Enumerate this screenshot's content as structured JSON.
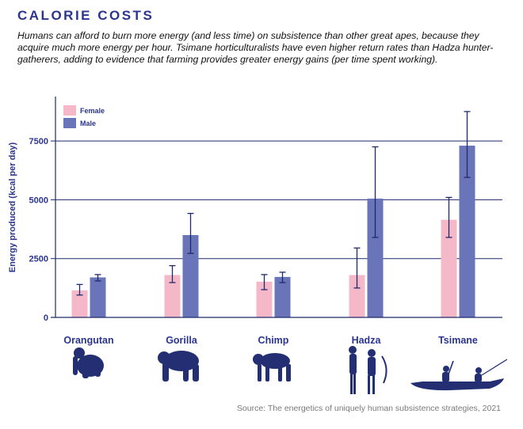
{
  "header": {
    "title": "CALORIE COSTS",
    "subtitle": "Humans can afford to burn more energy (and less time) on subsistence than other great apes, because they acquire much more energy per hour. Tsimane horticulturalists have even higher return rates than Hadza hunter-gatherers, adding to evidence that farming provides greater energy gains (per time spent working)."
  },
  "source": "Source: The energetics of uniquely human subsistence strategies, 2021",
  "colors": {
    "female": "#f4b8c9",
    "male": "#6a74b8",
    "axis": "#1f2a6b",
    "text": "#2b3590"
  },
  "icons": [
    "orangutan-icon",
    "gorilla-icon",
    "chimp-icon",
    "hadza-hunters-icon",
    "tsimane-canoe-icon"
  ],
  "chart_data": {
    "type": "bar",
    "title": "",
    "xlabel": "",
    "ylabel": "Energy produced (kcal per day)",
    "ylim": [
      0,
      9000
    ],
    "yticks": [
      0,
      2500,
      5000,
      7500
    ],
    "ytick_labels": [
      "0",
      "2500",
      "5000",
      "7500"
    ],
    "grid": true,
    "legend": "top-left",
    "categories": [
      "Orangutan",
      "Gorilla",
      "Chimp",
      "Hadza",
      "Tsimane"
    ],
    "series": [
      {
        "name": "Female",
        "values": [
          1150,
          1800,
          1520,
          1800,
          4150
        ],
        "error_low": [
          950,
          1480,
          1180,
          1250,
          3400
        ],
        "error_high": [
          1400,
          2200,
          1820,
          2950,
          5100
        ]
      },
      {
        "name": "Male",
        "values": [
          1700,
          3500,
          1720,
          5050,
          7300
        ],
        "error_low": [
          1550,
          2720,
          1480,
          3400,
          5950
        ],
        "error_high": [
          1820,
          4420,
          1920,
          7250,
          8750
        ]
      }
    ]
  }
}
